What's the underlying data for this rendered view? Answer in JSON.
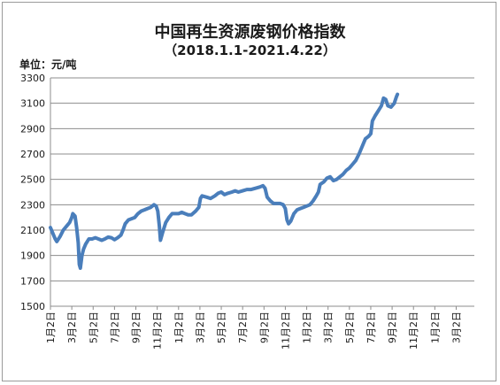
{
  "chart_data": {
    "type": "line",
    "title": "中国再生资源废钢价格指数",
    "subtitle": "（2018.1.1-2021.4.22）",
    "ylabel": "单位：元/吨",
    "xlabel": "",
    "ylim": [
      1500,
      3300
    ],
    "yticks": [
      1500,
      1700,
      1900,
      2100,
      2300,
      2500,
      2700,
      2900,
      3100,
      3300
    ],
    "xlim": [
      0,
      39.7
    ],
    "xticks": [
      {
        "pos": 0,
        "label": "1月2日"
      },
      {
        "pos": 2,
        "label": "3月2日"
      },
      {
        "pos": 4,
        "label": "5月2日"
      },
      {
        "pos": 6,
        "label": "7月2日"
      },
      {
        "pos": 8,
        "label": "9月2日"
      },
      {
        "pos": 10,
        "label": "11月2日"
      },
      {
        "pos": 12,
        "label": "1月2日"
      },
      {
        "pos": 14,
        "label": "3月2日"
      },
      {
        "pos": 16,
        "label": "5月2日"
      },
      {
        "pos": 18,
        "label": "7月2日"
      },
      {
        "pos": 20,
        "label": "9月2日"
      },
      {
        "pos": 22,
        "label": "11月2日"
      },
      {
        "pos": 24,
        "label": "1月2日"
      },
      {
        "pos": 26,
        "label": "3月2日"
      },
      {
        "pos": 28,
        "label": "5月2日"
      },
      {
        "pos": 30,
        "label": "7月2日"
      },
      {
        "pos": 32,
        "label": "9月2日"
      },
      {
        "pos": 34,
        "label": "11月2日"
      },
      {
        "pos": 36,
        "label": "1月2日"
      },
      {
        "pos": 38,
        "label": "3月2日"
      }
    ],
    "grid": "horizontal",
    "line_color": "#4a7ebb",
    "series": [
      {
        "values": [
          [
            0,
            2120
          ],
          [
            0.2,
            2080
          ],
          [
            0.45,
            2030
          ],
          [
            0.6,
            2010
          ],
          [
            0.9,
            2050
          ],
          [
            1.2,
            2100
          ],
          [
            1.5,
            2130
          ],
          [
            1.8,
            2160
          ],
          [
            2.0,
            2200
          ],
          [
            2.1,
            2230
          ],
          [
            2.3,
            2210
          ],
          [
            2.45,
            2120
          ],
          [
            2.6,
            2000
          ],
          [
            2.7,
            1830
          ],
          [
            2.8,
            1800
          ],
          [
            2.95,
            1900
          ],
          [
            3.1,
            1950
          ],
          [
            3.3,
            1990
          ],
          [
            3.6,
            2030
          ],
          [
            3.9,
            2030
          ],
          [
            4.2,
            2040
          ],
          [
            4.5,
            2030
          ],
          [
            4.8,
            2020
          ],
          [
            5.1,
            2030
          ],
          [
            5.4,
            2045
          ],
          [
            5.7,
            2040
          ],
          [
            6.0,
            2025
          ],
          [
            6.3,
            2040
          ],
          [
            6.6,
            2060
          ],
          [
            6.8,
            2100
          ],
          [
            7.0,
            2150
          ],
          [
            7.3,
            2180
          ],
          [
            7.6,
            2190
          ],
          [
            7.9,
            2200
          ],
          [
            8.2,
            2230
          ],
          [
            8.5,
            2250
          ],
          [
            8.8,
            2260
          ],
          [
            9.1,
            2270
          ],
          [
            9.4,
            2280
          ],
          [
            9.7,
            2300
          ],
          [
            9.9,
            2290
          ],
          [
            10.05,
            2250
          ],
          [
            10.2,
            2130
          ],
          [
            10.3,
            2020
          ],
          [
            10.5,
            2080
          ],
          [
            10.8,
            2160
          ],
          [
            11.1,
            2200
          ],
          [
            11.4,
            2230
          ],
          [
            11.7,
            2230
          ],
          [
            12.0,
            2230
          ],
          [
            12.3,
            2240
          ],
          [
            12.6,
            2230
          ],
          [
            12.9,
            2220
          ],
          [
            13.2,
            2220
          ],
          [
            13.6,
            2250
          ],
          [
            13.9,
            2280
          ],
          [
            14.05,
            2350
          ],
          [
            14.2,
            2370
          ],
          [
            14.6,
            2360
          ],
          [
            15.0,
            2350
          ],
          [
            15.4,
            2370
          ],
          [
            15.7,
            2390
          ],
          [
            16.0,
            2400
          ],
          [
            16.3,
            2380
          ],
          [
            16.6,
            2390
          ],
          [
            17.0,
            2400
          ],
          [
            17.3,
            2410
          ],
          [
            17.6,
            2400
          ],
          [
            18.0,
            2410
          ],
          [
            18.4,
            2420
          ],
          [
            18.8,
            2420
          ],
          [
            19.2,
            2430
          ],
          [
            19.6,
            2440
          ],
          [
            19.9,
            2450
          ],
          [
            20.1,
            2430
          ],
          [
            20.3,
            2360
          ],
          [
            20.6,
            2330
          ],
          [
            20.9,
            2310
          ],
          [
            21.2,
            2310
          ],
          [
            21.5,
            2310
          ],
          [
            21.8,
            2300
          ],
          [
            22.0,
            2270
          ],
          [
            22.15,
            2180
          ],
          [
            22.3,
            2150
          ],
          [
            22.5,
            2170
          ],
          [
            22.8,
            2230
          ],
          [
            23.1,
            2260
          ],
          [
            23.4,
            2270
          ],
          [
            23.7,
            2280
          ],
          [
            24.0,
            2290
          ],
          [
            24.3,
            2300
          ],
          [
            24.6,
            2330
          ],
          [
            24.9,
            2370
          ],
          [
            25.1,
            2400
          ],
          [
            25.25,
            2460
          ],
          [
            25.6,
            2480
          ],
          [
            25.9,
            2510
          ],
          [
            26.2,
            2520
          ],
          [
            26.5,
            2490
          ],
          [
            26.8,
            2500
          ],
          [
            27.1,
            2520
          ],
          [
            27.4,
            2540
          ],
          [
            27.7,
            2570
          ],
          [
            28.0,
            2590
          ],
          [
            28.3,
            2620
          ],
          [
            28.6,
            2650
          ],
          [
            28.9,
            2700
          ],
          [
            29.2,
            2760
          ],
          [
            29.5,
            2820
          ],
          [
            29.8,
            2840
          ],
          [
            30.0,
            2860
          ],
          [
            30.15,
            2960
          ],
          [
            30.4,
            3000
          ],
          [
            30.7,
            3040
          ],
          [
            31.0,
            3080
          ],
          [
            31.2,
            3140
          ],
          [
            31.4,
            3130
          ],
          [
            31.6,
            3080
          ],
          [
            31.9,
            3070
          ],
          [
            32.2,
            3100
          ],
          [
            32.4,
            3150
          ],
          [
            32.5,
            3170
          ]
        ]
      }
    ]
  }
}
